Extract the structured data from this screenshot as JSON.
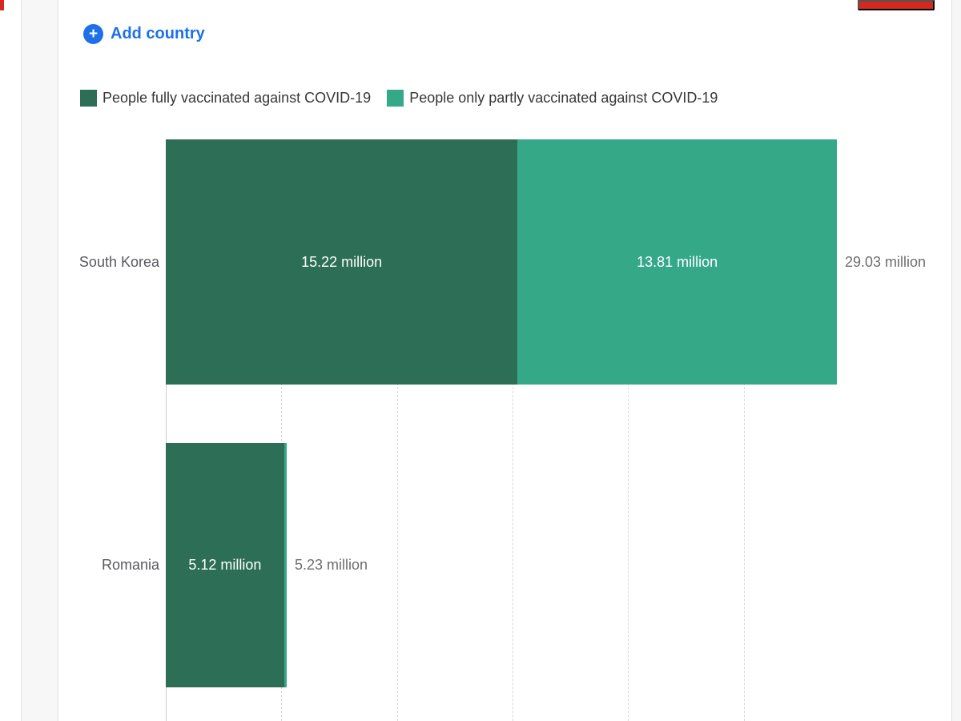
{
  "page": {
    "add_country_label": "Add country",
    "plus_glyph": "+",
    "accent_blue": "#1d70e8",
    "red_accent": "#d3291e"
  },
  "legend": {
    "items": [
      {
        "label": "People fully vaccinated against COVID-19",
        "color": "#2d6e57"
      },
      {
        "label": "People only partly vaccinated against COVID-19",
        "color": "#34a887"
      }
    ]
  },
  "chart_data": {
    "type": "bar",
    "orientation": "horizontal",
    "stacked": true,
    "unit": "million people",
    "categories": [
      "South Korea",
      "Romania"
    ],
    "series": [
      {
        "name": "People fully vaccinated against COVID-19",
        "color": "#2d6e57",
        "values": [
          15.22,
          5.12
        ]
      },
      {
        "name": "People only partly vaccinated against COVID-19",
        "color": "#34a887",
        "values": [
          13.81,
          0.11
        ]
      }
    ],
    "totals": [
      29.03,
      5.23
    ],
    "bar_labels": [
      [
        "15.22 million",
        "13.81 million"
      ],
      [
        "5.12 million",
        ""
      ]
    ],
    "total_labels": [
      "29.03 million",
      "5.23 million"
    ],
    "xlim": [
      0,
      29.03
    ],
    "gridline_interval": 5,
    "grid": true,
    "grid_style": "dashed",
    "legend_position": "top",
    "value_label_color": "#ffffff",
    "category_label_color": "#58585f",
    "total_label_color": "#6e6e6e"
  }
}
